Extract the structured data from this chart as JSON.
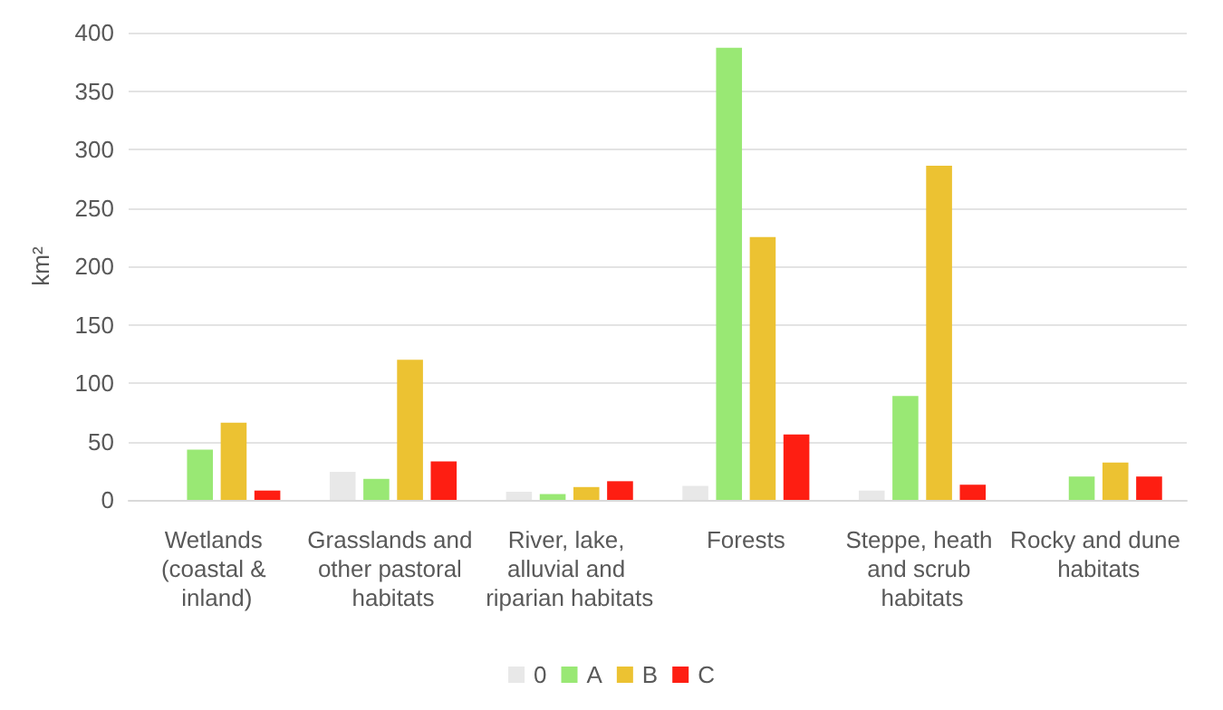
{
  "chart_data": {
    "type": "bar",
    "ylabel": "km²",
    "categories": [
      "Wetlands (coastal & inland)",
      "Grasslands and other pastoral habitats",
      "River, lake, alluvial and riparian habitats",
      "Forests",
      "Steppe, heath and scrub habitats",
      "Rocky and dune habitats"
    ],
    "series": [
      {
        "name": "0",
        "color": "#e8e8e8",
        "values": [
          0,
          24,
          7,
          12,
          8,
          0
        ]
      },
      {
        "name": "A",
        "color": "#99e874",
        "values": [
          43,
          18,
          5,
          387,
          89,
          20
        ]
      },
      {
        "name": "B",
        "color": "#ecc232",
        "values": [
          66,
          120,
          11,
          225,
          286,
          32
        ]
      },
      {
        "name": "C",
        "color": "#fe1e12",
        "values": [
          8,
          33,
          16,
          56,
          13,
          20
        ]
      }
    ],
    "ylim": [
      0,
      400
    ],
    "yticks": [
      0,
      50,
      100,
      150,
      200,
      250,
      300,
      350,
      400
    ],
    "grid": "y",
    "legend": "bottom"
  }
}
